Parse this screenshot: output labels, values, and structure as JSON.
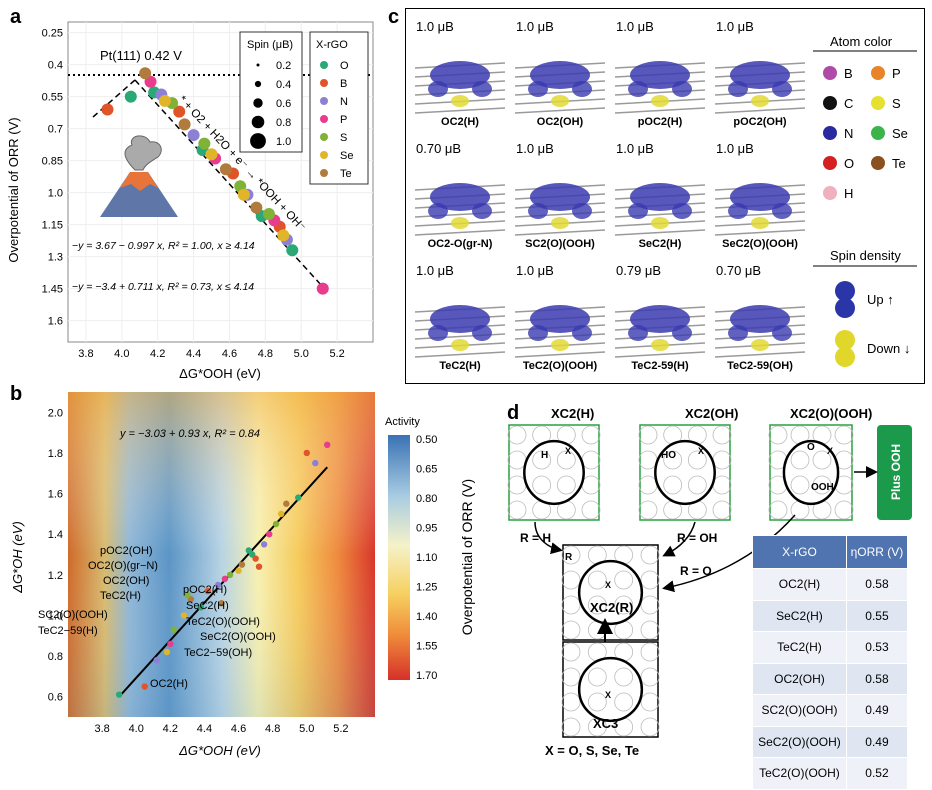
{
  "panels": {
    "a": "a",
    "b": "b",
    "c": "c",
    "d": "d"
  },
  "panel_a": {
    "ylabel": "Overpotential of ORR (V)",
    "xlabel": "ΔG*OOH (eV)",
    "pt_label": "Pt(111) 0.42 V",
    "reaction_label": "* + O2 + H2O + e⁻ → *OOH + OH⁻",
    "eq1": "−y = 3.67 − 0.997 x, R² = 1.00, x ≥ 4.14",
    "eq2": "−y = −3.4 + 0.711 x, R² = 0.73, x ≤ 4.14",
    "spin_legend_title": "Spin (μB)",
    "spin_sizes": [
      "0.2",
      "0.4",
      "0.6",
      "0.8",
      "1.0"
    ],
    "xrgo_legend_title": "X-rGO",
    "elements": [
      "O",
      "B",
      "N",
      "P",
      "S",
      "Se",
      "Te"
    ],
    "element_colors": [
      "#2aa876",
      "#e0542a",
      "#8b80d4",
      "#e83c8c",
      "#7fb236",
      "#e1b52a",
      "#b07b3c"
    ]
  },
  "panel_b": {
    "ylabel": "ΔG*OH (eV)",
    "xlabel": "ΔG*OOH (eV)",
    "eq": "y = −3.03 + 0.93 x, R² = 0.84",
    "colorbar_title": "Activity",
    "colorbar_label": "Overpotential of ORR (V)",
    "colorbar_ticks": [
      "0.50",
      "0.65",
      "0.80",
      "0.95",
      "1.10",
      "1.25",
      "1.40",
      "1.55",
      "1.70"
    ],
    "annotations": [
      "pOC2(OH)",
      "OC2(O)(gr−N)",
      "OC2(OH)",
      "TeC2(H)",
      "SC2(O)(OOH)",
      "TeC2−59(H)",
      "pOC2(H)",
      "SeC2(H)",
      "TeC2(O)(OOH)",
      "SeC2(O)(OOH)",
      "TeC2−59(OH)",
      "OC2(H)"
    ]
  },
  "panel_c": {
    "cells": [
      {
        "spin": "1.0 μB",
        "label": "OC2(H)"
      },
      {
        "spin": "1.0 μB",
        "label": "OC2(OH)"
      },
      {
        "spin": "1.0 μB",
        "label": "pOC2(H)"
      },
      {
        "spin": "1.0 μB",
        "label": "pOC2(OH)"
      },
      {
        "spin": "0.70 μB",
        "label": "OC2-O(gr-N)"
      },
      {
        "spin": "1.0 μB",
        "label": "SC2(O)(OOH)"
      },
      {
        "spin": "1.0 μB",
        "label": "SeC2(H)"
      },
      {
        "spin": "1.0 μB",
        "label": "SeC2(O)(OOH)"
      },
      {
        "spin": "1.0 μB",
        "label": "TeC2(H)"
      },
      {
        "spin": "1.0 μB",
        "label": "TeC2(O)(OOH)"
      },
      {
        "spin": "0.79 μB",
        "label": "TeC2-59(H)"
      },
      {
        "spin": "0.70 μB",
        "label": "TeC2-59(OH)"
      }
    ],
    "atom_color_title": "Atom color",
    "atoms": [
      {
        "sym": "B",
        "color": "#b04aa8"
      },
      {
        "sym": "P",
        "color": "#e8832a"
      },
      {
        "sym": "C",
        "color": "#111111"
      },
      {
        "sym": "S",
        "color": "#e6e030"
      },
      {
        "sym": "N",
        "color": "#2a2aa0"
      },
      {
        "sym": "Se",
        "color": "#3cb44a"
      },
      {
        "sym": "O",
        "color": "#d42020"
      },
      {
        "sym": "Te",
        "color": "#8a5020"
      },
      {
        "sym": "H",
        "color": "#f0b0c0"
      }
    ],
    "spin_title": "Spin density",
    "up": "Up ↑",
    "down": "Down ↓"
  },
  "panel_d": {
    "s1": "XC2(H)",
    "s2": "XC2(OH)",
    "s3": "XC2(O)(OOH)",
    "plus": "Plus OOH",
    "center": "XC2(R)",
    "bottom": "XC3",
    "x_label": "X = O, S, Se, Te",
    "r_h": "R = H",
    "r_oh": "R = OH",
    "r_o": "R = O",
    "atom_h": "H",
    "atom_ho": "HO",
    "atom_o": "O",
    "atom_ooh": "OOH",
    "atom_x": "X",
    "atom_r": "R",
    "table_headers": [
      "X-rGO",
      "ηORR (V)"
    ],
    "table_rows": [
      [
        "OC2(H)",
        "0.58"
      ],
      [
        "SeC2(H)",
        "0.55"
      ],
      [
        "TeC2(H)",
        "0.53"
      ],
      [
        "OC2(OH)",
        "0.58"
      ],
      [
        "SC2(O)(OOH)",
        "0.49"
      ],
      [
        "SeC2(O)(OOH)",
        "0.49"
      ],
      [
        "TeC2(O)(OOH)",
        "0.52"
      ]
    ]
  },
  "chart_data": [
    {
      "type": "scatter",
      "title": "",
      "xlabel": "ΔG*OOH (eV)",
      "ylabel": "Overpotential of ORR (V)",
      "xlim": [
        3.7,
        5.4
      ],
      "ylim": [
        1.7,
        0.2
      ],
      "xticks": [
        3.8,
        4.0,
        4.2,
        4.4,
        4.6,
        4.8,
        5.0,
        5.2
      ],
      "yticks": [
        0.25,
        0.4,
        0.55,
        0.7,
        0.85,
        1.0,
        1.15,
        1.3,
        1.45,
        1.6
      ],
      "reference_line": {
        "label": "Pt(111) 0.42 V",
        "y": 0.42
      },
      "series": [
        {
          "name": "O",
          "x": [
            4.05,
            4.18,
            4.45,
            4.78,
            4.95
          ],
          "y": [
            0.55,
            0.53,
            0.8,
            1.11,
            1.27
          ]
        },
        {
          "name": "B",
          "x": [
            3.92,
            4.32,
            4.62,
            4.88
          ],
          "y": [
            0.61,
            0.62,
            0.91,
            1.16
          ]
        },
        {
          "name": "N",
          "x": [
            4.22,
            4.4,
            4.7,
            4.92
          ],
          "y": [
            0.54,
            0.73,
            1.01,
            1.22
          ]
        },
        {
          "name": "P",
          "x": [
            4.16,
            4.52,
            4.85,
            5.12
          ],
          "y": [
            0.48,
            0.84,
            1.13,
            1.45
          ]
        },
        {
          "name": "S",
          "x": [
            4.28,
            4.46,
            4.66,
            4.82
          ],
          "y": [
            0.58,
            0.77,
            0.97,
            1.1
          ]
        },
        {
          "name": "Se",
          "x": [
            4.24,
            4.5,
            4.68,
            4.9
          ],
          "y": [
            0.57,
            0.82,
            1.01,
            1.2
          ]
        },
        {
          "name": "Te",
          "x": [
            4.13,
            4.35,
            4.58,
            4.75
          ],
          "y": [
            0.44,
            0.68,
            0.89,
            1.07
          ]
        }
      ]
    },
    {
      "type": "scatter",
      "title": "",
      "xlabel": "ΔG*OOH (eV)",
      "ylabel": "ΔG*OH (eV)",
      "xlim": [
        3.6,
        5.4
      ],
      "ylim": [
        0.5,
        2.1
      ],
      "xticks": [
        3.8,
        4.0,
        4.2,
        4.4,
        4.6,
        4.8,
        5.0,
        5.2
      ],
      "yticks": [
        0.6,
        0.8,
        1.0,
        1.2,
        1.4,
        1.6,
        1.8,
        2.0
      ],
      "fit": {
        "label": "y = −3.03 + 0.93 x, R² = 0.84",
        "x": [
          3.9,
          5.12
        ],
        "y": [
          0.6,
          1.73
        ]
      },
      "points_x": [
        3.9,
        4.05,
        4.12,
        4.2,
        4.22,
        4.28,
        4.32,
        4.38,
        4.42,
        4.48,
        4.52,
        4.55,
        4.6,
        4.62,
        4.68,
        4.7,
        4.75,
        4.78,
        4.82,
        4.85,
        4.88,
        4.95,
        5.0,
        5.05,
        5.12,
        4.3,
        4.18,
        4.5,
        4.66,
        4.72
      ],
      "points_y": [
        0.61,
        0.65,
        0.78,
        0.86,
        0.93,
        1.0,
        1.08,
        1.04,
        1.12,
        1.15,
        1.18,
        1.2,
        1.22,
        1.25,
        1.3,
        1.28,
        1.35,
        1.4,
        1.45,
        1.5,
        1.55,
        1.58,
        1.8,
        1.75,
        1.84,
        1.1,
        0.82,
        1.06,
        1.32,
        1.24
      ]
    }
  ]
}
